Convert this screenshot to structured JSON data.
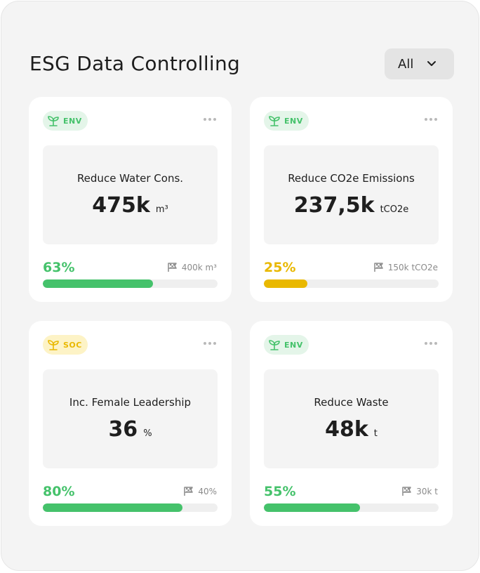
{
  "header": {
    "title": "ESG Data Controlling",
    "filter": {
      "value": "All"
    }
  },
  "colors": {
    "green": "#45c26b",
    "green_tag_bg": "#e4f5e9",
    "yellow": "#e9b800",
    "yellow_tag_bg": "#fdf3c6",
    "track": "#efefef"
  },
  "cards": [
    {
      "tag": "ENV",
      "tag_color": "green",
      "title": "Reduce Water Cons.",
      "value": "475k",
      "unit": "m³",
      "percent_label": "63%",
      "progress": 0.63,
      "bar_color": "green",
      "target": "400k m³"
    },
    {
      "tag": "ENV",
      "tag_color": "green",
      "title": "Reduce CO2e Emissions",
      "value": "237,5k",
      "unit": "tCO2e",
      "percent_label": "25%",
      "progress": 0.25,
      "bar_color": "yellow",
      "target": "150k tCO2e"
    },
    {
      "tag": "SOC",
      "tag_color": "yellow",
      "title": "Inc. Female Leadership",
      "value": "36",
      "unit": "%",
      "percent_label": "80%",
      "progress": 0.8,
      "bar_color": "green",
      "target": "40%"
    },
    {
      "tag": "ENV",
      "tag_color": "green",
      "title": "Reduce Waste",
      "value": "48k",
      "unit": "t",
      "percent_label": "55%",
      "progress": 0.55,
      "bar_color": "green",
      "target": "30k t"
    }
  ]
}
